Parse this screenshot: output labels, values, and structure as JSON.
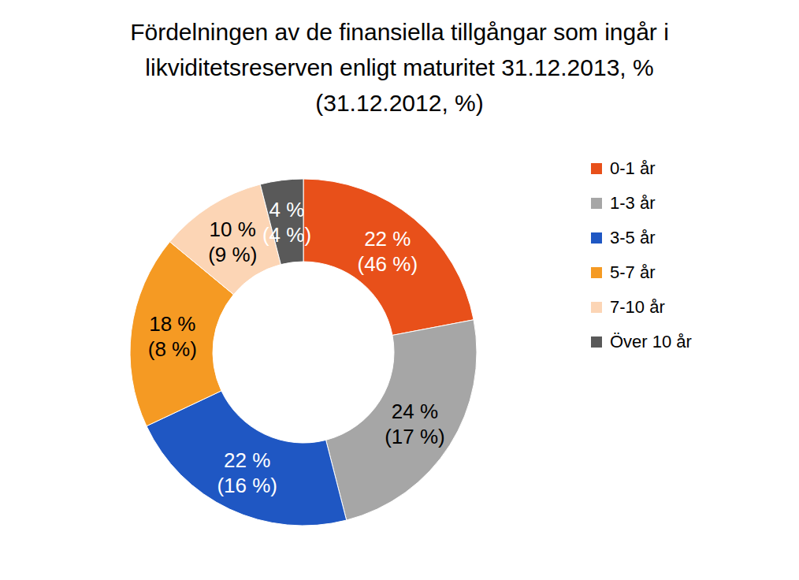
{
  "chart_data": {
    "type": "pie",
    "title": "Fördelningen av de finansiella tillgångar som ingår i likviditetsreserven enligt maturitet 31.12.2013, % (31.12.2012, %)",
    "categories": [
      "0-1 år",
      "1-3 år",
      "3-5 år",
      "5-7 år",
      "7-10 år",
      "Över 10 år"
    ],
    "values": [
      22,
      24,
      22,
      18,
      10,
      4
    ],
    "value_labels": [
      "22 %",
      "24 %",
      "22 %",
      "18 %",
      "10 %",
      "4 %"
    ],
    "previous_values": [
      46,
      17,
      16,
      8,
      9,
      4
    ],
    "previous_value_labels": [
      "(46 %)",
      "(17 %)",
      "(16 %)",
      "(8 %)",
      "(9 %)",
      "(4 %)"
    ],
    "colors": [
      "#e8501a",
      "#a6a6a6",
      "#1f57c3",
      "#f59a23",
      "#fcd5b5",
      "#595959"
    ],
    "data_labels": true,
    "legend": "right"
  }
}
